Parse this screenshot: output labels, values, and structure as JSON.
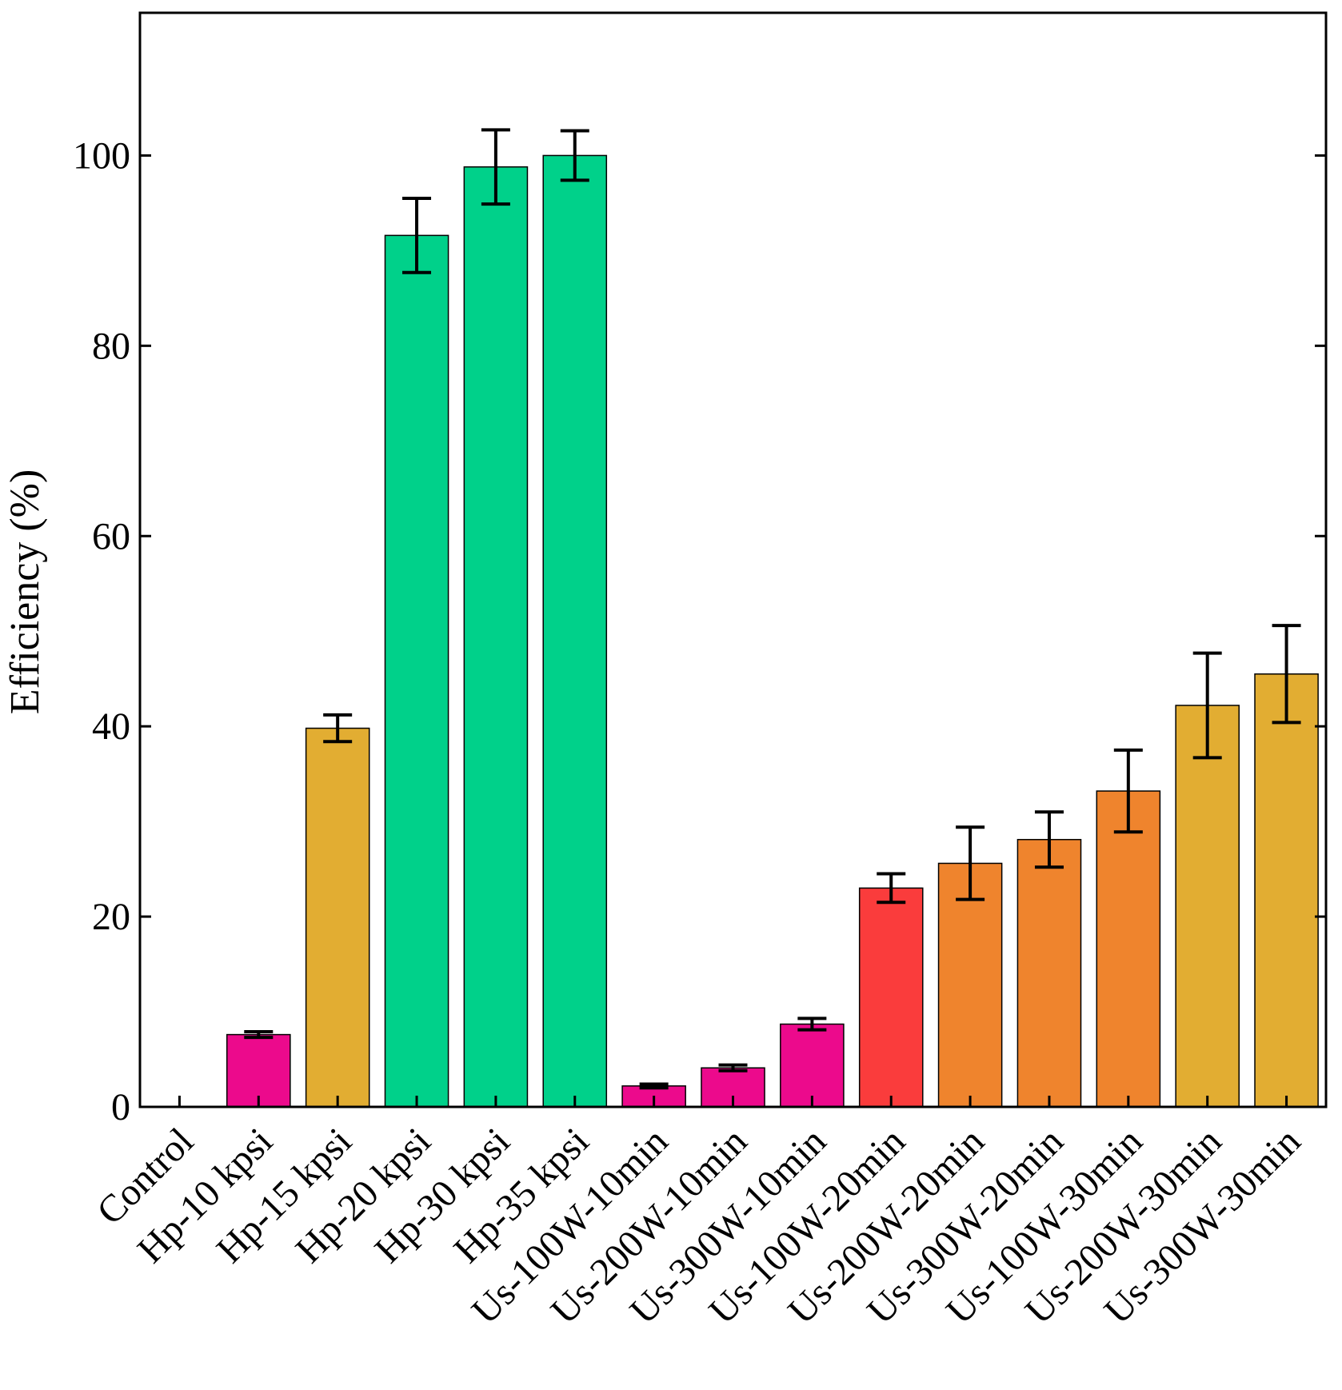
{
  "chart_data": {
    "type": "bar",
    "title": "",
    "xlabel": "",
    "ylabel": "Efficiency (%)",
    "ylim": [
      0,
      115
    ],
    "yticks": [
      0,
      20,
      40,
      60,
      80,
      100
    ],
    "grid": false,
    "categories": [
      "Control",
      "Hp-10 kpsi",
      "Hp-15 kpsi",
      "Hp-20 kpsi",
      "Hp-30 kpsi",
      "Hp-35 kpsi",
      "Us-100W-10min",
      "Us-200W-10min",
      "Us-300W-10min",
      "Us-100W-20min",
      "Us-200W-20min",
      "Us-300W-20min",
      "Us-100W-30min",
      "Us-200W-30min",
      "Us-300W-30min"
    ],
    "values": [
      0,
      7.6,
      39.8,
      91.6,
      98.8,
      100.0,
      2.2,
      4.1,
      8.7,
      23.0,
      25.6,
      28.1,
      33.2,
      42.2,
      45.5
    ],
    "errors": [
      null,
      0.3,
      1.4,
      3.9,
      3.9,
      2.6,
      0.2,
      0.3,
      0.6,
      1.5,
      3.8,
      2.9,
      4.3,
      5.5,
      5.1
    ],
    "colors": [
      "#ec0a8c",
      "#ec0a8c",
      "#e2ad32",
      "#00d18a",
      "#00d18a",
      "#00d18a",
      "#ec0a8c",
      "#ec0a8c",
      "#ec0a8c",
      "#fa3c3c",
      "#ef842d",
      "#ef842d",
      "#ef842d",
      "#e2ad32",
      "#e2ad32"
    ]
  }
}
